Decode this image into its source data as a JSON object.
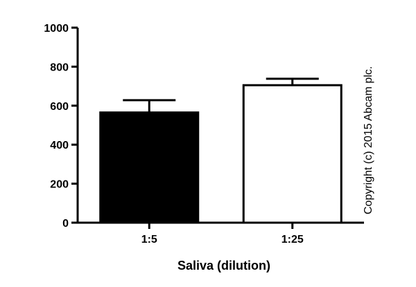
{
  "chart_data": {
    "type": "bar",
    "title": "",
    "xlabel": "Saliva (dilution)",
    "ylabel": "",
    "ylim": [
      0,
      1000
    ],
    "yticks": [
      0,
      200,
      400,
      600,
      800,
      1000
    ],
    "categories": [
      "1:5",
      "1:25"
    ],
    "values": [
      565,
      705
    ],
    "errors": [
      63,
      33
    ],
    "bar_colors": [
      "#000000",
      "#ffffff"
    ],
    "grid": false,
    "legend": "none"
  },
  "copyright": "Copyright (c) 2015 Abcam plc."
}
